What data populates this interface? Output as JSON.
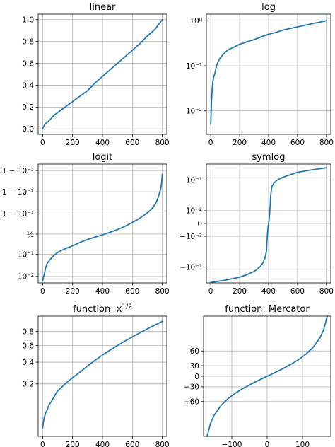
{
  "figure": {
    "background": "#ffffff",
    "line_color": "#1f77b4",
    "grid_color": "#b0b0b0"
  },
  "chart_data": [
    {
      "type": "line",
      "title": "linear",
      "yscale": "linear",
      "grid": true,
      "xlim": [
        -30,
        830
      ],
      "ylim": [
        -0.05,
        1.05
      ],
      "xticks": [
        0,
        200,
        400,
        600,
        800
      ],
      "xticklabels": [
        "0",
        "200",
        "400",
        "600",
        "800"
      ],
      "yticks": [
        0.0,
        0.2,
        0.4,
        0.6,
        0.8,
        1.0
      ],
      "yticklabels": [
        "0.0",
        "0.2",
        "0.4",
        "0.6",
        "0.8",
        "1.0"
      ],
      "series": [
        {
          "x": [
            0,
            10,
            20,
            40,
            60,
            80,
            100,
            150,
            200,
            250,
            300,
            350,
            400,
            450,
            500,
            550,
            600,
            650,
            700,
            750,
            800
          ],
          "y": [
            0.005,
            0.03,
            0.05,
            0.07,
            0.1,
            0.13,
            0.15,
            0.2,
            0.25,
            0.3,
            0.35,
            0.42,
            0.48,
            0.54,
            0.6,
            0.66,
            0.72,
            0.78,
            0.85,
            0.91,
            1.0
          ]
        }
      ]
    },
    {
      "type": "line",
      "title": "log",
      "yscale": "log",
      "grid": true,
      "xlim": [
        -30,
        830
      ],
      "ylim": [
        0.003,
        1.4
      ],
      "xticks": [
        0,
        200,
        400,
        600,
        800
      ],
      "xticklabels": [
        "0",
        "200",
        "400",
        "600",
        "800"
      ],
      "yticks": [
        0.01,
        0.1,
        1
      ],
      "yticklabels": [
        "10⁻²",
        "10⁻¹",
        "10⁰"
      ],
      "series": [
        {
          "x": [
            0,
            5,
            10,
            15,
            20,
            30,
            40,
            50,
            60,
            80,
            100,
            125,
            150,
            200,
            250,
            300,
            350,
            400,
            450,
            500,
            600,
            700,
            800
          ],
          "y": [
            0.005,
            0.015,
            0.03,
            0.045,
            0.055,
            0.07,
            0.1,
            0.12,
            0.14,
            0.17,
            0.2,
            0.23,
            0.25,
            0.3,
            0.34,
            0.38,
            0.44,
            0.5,
            0.55,
            0.62,
            0.73,
            0.86,
            1.0
          ]
        }
      ]
    },
    {
      "type": "line",
      "title": "logit",
      "yscale": "logit",
      "grid": true,
      "xlim": [
        -30,
        830
      ],
      "ylim": [
        0.005,
        0.9995
      ],
      "xticks": [
        0,
        200,
        400,
        600,
        800
      ],
      "xticklabels": [
        "0",
        "200",
        "400",
        "600",
        "800"
      ],
      "yticks": [
        0.01,
        0.1,
        0.5,
        0.9,
        0.99,
        0.999
      ],
      "yticklabels": [
        "10⁻²",
        "10⁻¹",
        "½",
        "1 − 10⁻¹",
        "1 − 10⁻²",
        "1 − 10⁻³"
      ],
      "series": [
        {
          "x": [
            0,
            5,
            10,
            20,
            30,
            50,
            75,
            100,
            150,
            200,
            250,
            300,
            350,
            400,
            450,
            500,
            550,
            600,
            650,
            700,
            720,
            740,
            760,
            770,
            780,
            790,
            795,
            800
          ],
          "y": [
            0.006,
            0.009,
            0.012,
            0.025,
            0.04,
            0.06,
            0.09,
            0.12,
            0.17,
            0.22,
            0.29,
            0.36,
            0.42,
            0.48,
            0.55,
            0.62,
            0.7,
            0.78,
            0.85,
            0.91,
            0.93,
            0.95,
            0.97,
            0.98,
            0.988,
            0.993,
            0.996,
            0.9985
          ]
        }
      ]
    },
    {
      "type": "line",
      "title": "symlog",
      "yscale": "symlog",
      "linthresh": 0.02,
      "grid": true,
      "xlim": [
        -30,
        830
      ],
      "ylim": [
        -0.42,
        0.42
      ],
      "xticks": [
        0,
        200,
        400,
        600,
        800
      ],
      "xticklabels": [
        "0",
        "200",
        "400",
        "600",
        "800"
      ],
      "yticks": [
        -0.1,
        -0.01,
        0,
        0.01,
        0.1
      ],
      "yticklabels": [
        "−10⁻¹",
        "−10⁻²",
        "0",
        "10⁻²",
        "10⁻¹"
      ],
      "series": [
        {
          "x": [
            0,
            100,
            200,
            250,
            300,
            340,
            360,
            375,
            385,
            390,
            395,
            400,
            405,
            410,
            415,
            420,
            425,
            440,
            460,
            500,
            600,
            700,
            800
          ],
          "y": [
            -0.4,
            -0.33,
            -0.25,
            -0.2,
            -0.15,
            -0.1,
            -0.07,
            -0.045,
            -0.025,
            -0.012,
            -0.004,
            0.0,
            0.004,
            0.012,
            0.025,
            0.045,
            0.06,
            0.08,
            0.1,
            0.13,
            0.2,
            0.25,
            0.3
          ]
        }
      ]
    },
    {
      "type": "line",
      "title": "function: x",
      "title_superscript": "1/2",
      "yscale": "function (sqrt)",
      "grid": true,
      "xlim": [
        -30,
        830
      ],
      "ylim": [
        0.0,
        1.05
      ],
      "xticks": [
        0,
        200,
        400,
        600,
        800
      ],
      "xticklabels": [
        "0",
        "200",
        "400",
        "600",
        "800"
      ],
      "yticks": [
        0.2,
        0.4,
        0.6,
        0.8
      ],
      "yticklabels": [
        "0.2",
        "0.4",
        "0.6",
        "0.8"
      ],
      "series": [
        {
          "x": [
            0,
            5,
            10,
            20,
            30,
            40,
            60,
            80,
            100,
            150,
            200,
            250,
            300,
            350,
            400,
            450,
            500,
            550,
            600,
            650,
            700,
            750,
            800
          ],
          "y": [
            0.005,
            0.015,
            0.025,
            0.04,
            0.05,
            0.07,
            0.09,
            0.12,
            0.15,
            0.2,
            0.25,
            0.3,
            0.36,
            0.42,
            0.48,
            0.54,
            0.6,
            0.66,
            0.72,
            0.78,
            0.84,
            0.9,
            0.96
          ]
        }
      ]
    },
    {
      "type": "line",
      "title": "function: Mercator",
      "yscale": "function (mercator)",
      "grid": true,
      "xlim": [
        -180,
        180
      ],
      "ylim": [
        -85,
        85
      ],
      "xticks": [
        -100,
        0,
        100
      ],
      "xticklabels": [
        "−100",
        "0",
        "100"
      ],
      "yticks": [
        -60,
        -30,
        0,
        30,
        60
      ],
      "yticklabels": [
        "−60",
        "−30",
        "0",
        "30",
        "60"
      ],
      "series": [
        {
          "x": [
            -170,
            -160,
            -150,
            -130,
            -110,
            -90,
            -70,
            -50,
            -30,
            -10,
            10,
            30,
            50,
            70,
            90,
            110,
            130,
            150,
            160,
            170
          ],
          "y": [
            -85,
            -80,
            -75,
            -65,
            -55,
            -45,
            -35,
            -25,
            -15,
            -5,
            5,
            15,
            25,
            35,
            45,
            55,
            65,
            75,
            80,
            85
          ]
        }
      ]
    }
  ]
}
